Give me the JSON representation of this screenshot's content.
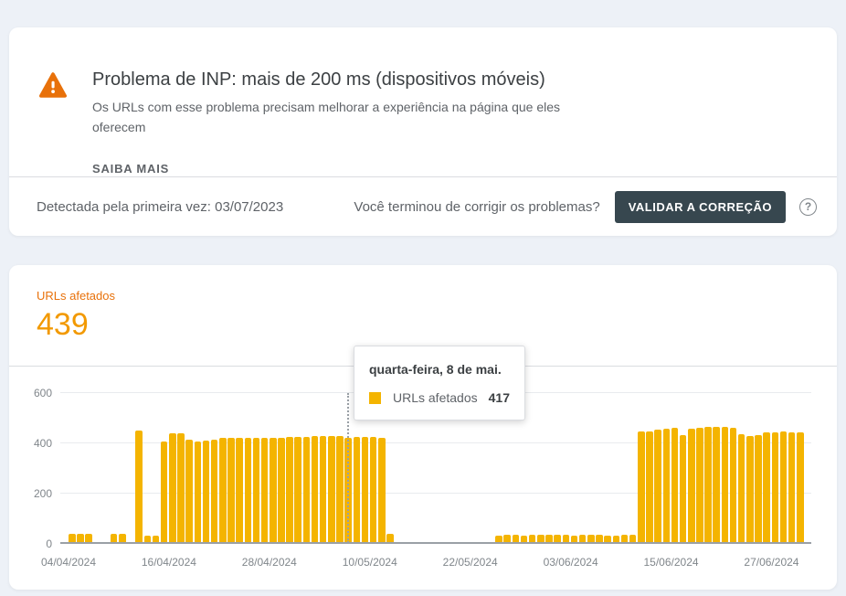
{
  "page": {
    "background": "#edf1f7"
  },
  "alert_card": {
    "title": "Problema de INP: mais de 200 ms (dispositivos móveis)",
    "description": "Os URLs com esse problema precisam melhorar a experiência na página que eles oferecem",
    "learn_more_label": "SAIBA MAIS",
    "warning_icon": "warning-triangle",
    "warning_icon_color": "#e8710a",
    "first_detected_label": "Detectada pela primeira vez: 03/07/2023",
    "validation_question": "Você terminou de corrigir os problemas?",
    "validate_button_label": "VALIDAR A CORREÇÃO",
    "validate_button_color": "#37474f",
    "help_icon_glyph": "?"
  },
  "metric_card": {
    "metric_label": "URLs afetados",
    "metric_value": "439",
    "label_color": "#e8710a",
    "value_color": "#f29900"
  },
  "tooltip": {
    "date_label": "quarta-feira, 8 de mai.",
    "series_label": "URLs afetados",
    "value": "417",
    "swatch_color": "#f4b400"
  },
  "chart_data": {
    "type": "bar",
    "title": "URLs afetados",
    "series_name": "URLs afetados",
    "bar_color": "#f4b400",
    "grid": true,
    "legend_position": "tooltip",
    "ylim": [
      0,
      600
    ],
    "y_ticks": [
      0,
      200,
      400,
      600
    ],
    "start_date": "04/04/2024",
    "x_tick_labels": [
      "04/04/2024",
      "16/04/2024",
      "28/04/2024",
      "10/05/2024",
      "22/05/2024",
      "03/06/2024",
      "15/06/2024",
      "27/06/2024"
    ],
    "x_tick_day_indices": [
      0,
      12,
      24,
      36,
      48,
      60,
      72,
      84
    ],
    "hover_day_index": 34,
    "hover_date_label": "quarta-feira, 8 de mai.",
    "hover_value": 417,
    "values": [
      0,
      35,
      35,
      35,
      0,
      0,
      35,
      35,
      0,
      447,
      30,
      30,
      403,
      436,
      436,
      410,
      402,
      406,
      412,
      418,
      418,
      417,
      417,
      418,
      418,
      419,
      420,
      421,
      422,
      423,
      424,
      425,
      425,
      426,
      417,
      422,
      422,
      421,
      419,
      35,
      0,
      0,
      0,
      0,
      0,
      0,
      0,
      0,
      0,
      0,
      0,
      0,
      30,
      32,
      32,
      30,
      32,
      32,
      34,
      34,
      32,
      30,
      34,
      32,
      32,
      30,
      30,
      32,
      32,
      445,
      443,
      450,
      455,
      458,
      428,
      453,
      460,
      462,
      462,
      462,
      460,
      432,
      427,
      430,
      440,
      440,
      442,
      440,
      440
    ]
  }
}
